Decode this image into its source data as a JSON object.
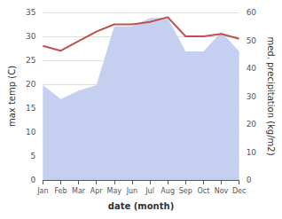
{
  "chart_data": {
    "type": "line",
    "categories": [
      "Jan",
      "Feb",
      "Mar",
      "Apr",
      "May",
      "Jun",
      "Jul",
      "Aug",
      "Sep",
      "Oct",
      "Nov",
      "Dec"
    ],
    "series": [
      {
        "type": "area",
        "axis": "y2",
        "color": "#c5d0f0",
        "values": [
          34,
          29,
          32,
          34,
          55,
          55,
          58,
          58,
          46,
          46,
          53,
          46
        ]
      },
      {
        "type": "line",
        "color": "#c0504d",
        "values": [
          28.0,
          27.0,
          29.0,
          31.0,
          32.5,
          32.5,
          33.0,
          34.0,
          30.0,
          30.0,
          30.5,
          29.5
        ]
      }
    ],
    "xlabel": "date (month)",
    "ylabel": "max temp (C)",
    "y2label": "med. precipitation (kg/m2)",
    "ylim": [
      0,
      35
    ],
    "yticks": [
      0,
      5,
      10,
      15,
      20,
      25,
      30,
      35
    ],
    "y2lim": [
      0,
      60
    ],
    "y2ticks": [
      0,
      10,
      20,
      30,
      40,
      50,
      60
    ],
    "grid": true
  }
}
